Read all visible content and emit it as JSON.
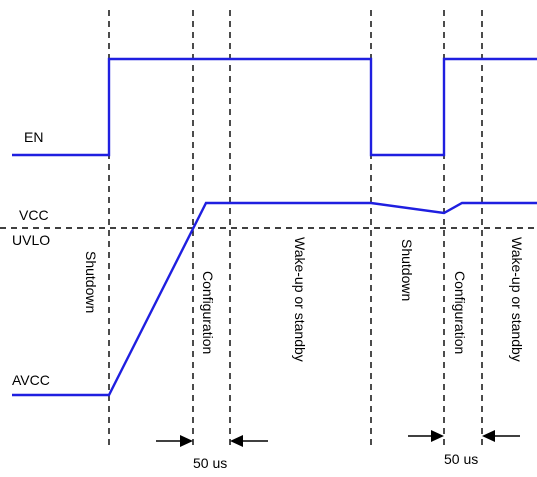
{
  "signals": {
    "en": "EN",
    "vcc": "VCC",
    "uvlo": "UVLO",
    "avcc": "AVCC"
  },
  "phases": {
    "shutdown_1": "Shutdown",
    "configuration_1": "Configuration",
    "wake_1": "Wake-up or standby",
    "shutdown_2": "Shutdown",
    "configuration_2": "Configuration",
    "wake_2": "Wake-up or standby"
  },
  "timing": {
    "delay_1": "50 us",
    "delay_2": "50 us"
  },
  "colors": {
    "signal": "#1f1fe0",
    "guide": "#000000"
  }
}
